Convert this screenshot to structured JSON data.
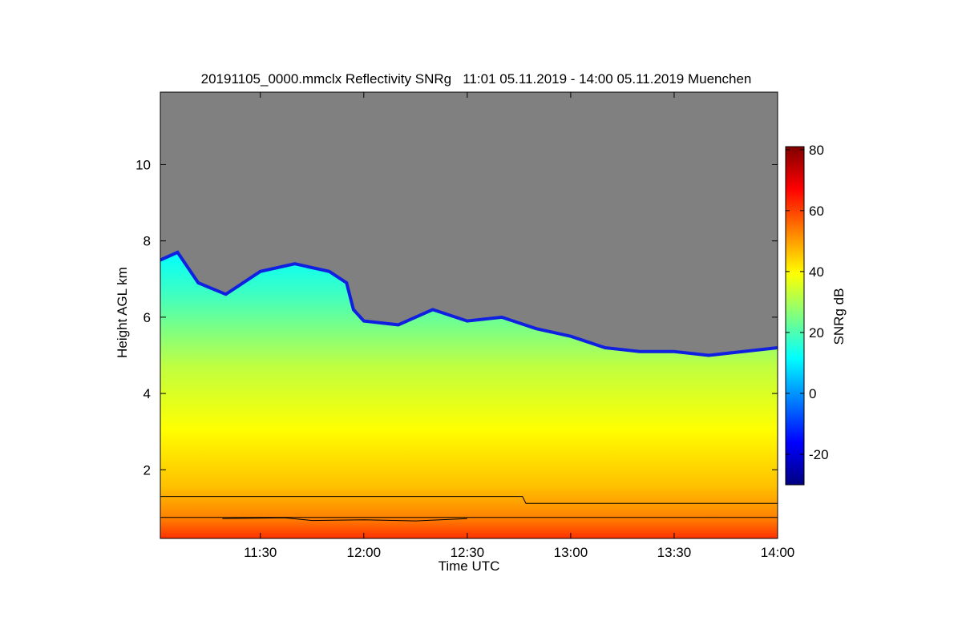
{
  "chart_data": {
    "type": "heatmap",
    "title": "20191105_0000.mmclx Reflectivity SNRg   11:01 05.11.2019 - 14:00 05.11.2019 Muenchen",
    "xlabel": "Time UTC",
    "ylabel": "Height AGL km",
    "xlim": [
      "11:01",
      "14:00"
    ],
    "ylim": [
      0.2,
      11.9
    ],
    "x_ticks": [
      "11:30",
      "12:00",
      "12:30",
      "13:00",
      "13:30",
      "14:00"
    ],
    "y_ticks": [
      "2",
      "4",
      "6",
      "8",
      "10"
    ],
    "colorbar": {
      "label": "SNRg dB",
      "range": [
        -30,
        81
      ],
      "ticks": [
        "-20",
        "0",
        "20",
        "40",
        "60",
        "80"
      ],
      "colormap": [
        "#000080",
        "#0000ff",
        "#0080ff",
        "#00ffff",
        "#80ff80",
        "#ffff00",
        "#ff8000",
        "#ff0000",
        "#800000"
      ]
    },
    "no_signal_color": "#808080",
    "echo_top_km": [
      {
        "time": "11:01",
        "height": 7.5
      },
      {
        "time": "11:06",
        "height": 7.7
      },
      {
        "time": "11:12",
        "height": 6.9
      },
      {
        "time": "11:20",
        "height": 6.6
      },
      {
        "time": "11:30",
        "height": 7.2
      },
      {
        "time": "11:40",
        "height": 7.4
      },
      {
        "time": "11:50",
        "height": 7.2
      },
      {
        "time": "11:55",
        "height": 6.9
      },
      {
        "time": "11:57",
        "height": 6.2
      },
      {
        "time": "12:00",
        "height": 5.9
      },
      {
        "time": "12:10",
        "height": 5.8
      },
      {
        "time": "12:20",
        "height": 6.2
      },
      {
        "time": "12:30",
        "height": 5.9
      },
      {
        "time": "12:40",
        "height": 6.0
      },
      {
        "time": "12:50",
        "height": 5.7
      },
      {
        "time": "13:00",
        "height": 5.5
      },
      {
        "time": "13:10",
        "height": 5.2
      },
      {
        "time": "13:20",
        "height": 5.1
      },
      {
        "time": "13:30",
        "height": 5.1
      },
      {
        "time": "13:40",
        "height": 5.0
      },
      {
        "time": "13:50",
        "height": 5.1
      },
      {
        "time": "14:00",
        "height": 5.2
      }
    ],
    "lines_km": [
      {
        "points": [
          {
            "time": "11:01",
            "height": 1.3
          },
          {
            "time": "12:46",
            "height": 1.3
          },
          {
            "time": "12:47",
            "height": 1.12
          },
          {
            "time": "14:00",
            "height": 1.12
          }
        ]
      },
      {
        "points": [
          {
            "time": "11:01",
            "height": 0.75
          },
          {
            "time": "14:00",
            "height": 0.75
          }
        ]
      },
      {
        "points": [
          {
            "time": "11:19",
            "height": 0.72
          },
          {
            "time": "11:37",
            "height": 0.74
          },
          {
            "time": "11:45",
            "height": 0.67
          },
          {
            "time": "12:00",
            "height": 0.69
          },
          {
            "time": "12:15",
            "height": 0.66
          },
          {
            "time": "12:30",
            "height": 0.72
          }
        ]
      }
    ]
  }
}
